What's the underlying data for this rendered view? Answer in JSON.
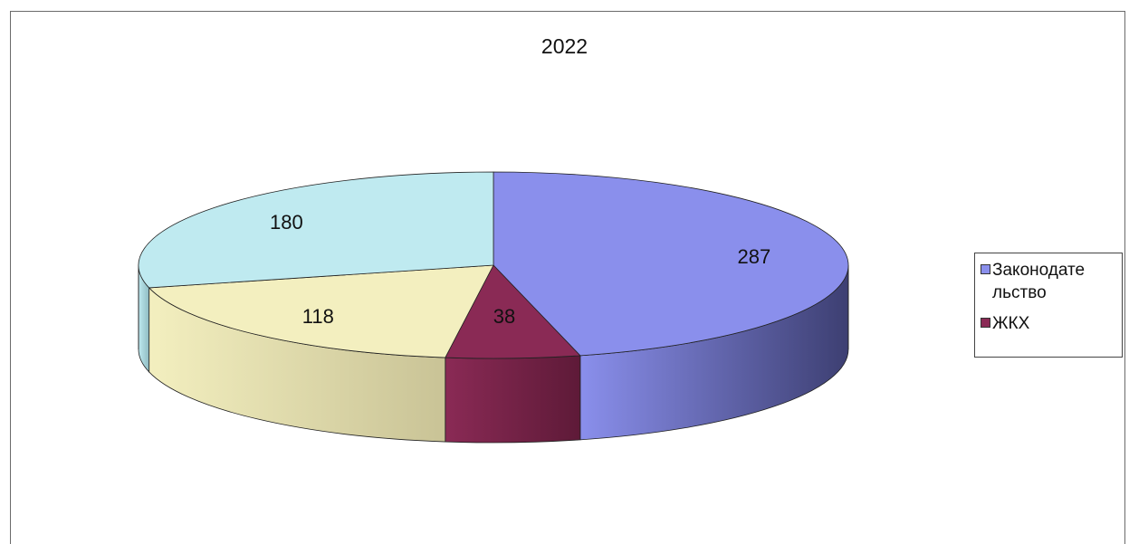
{
  "chart_data": {
    "type": "pie",
    "title": "2022",
    "slices": [
      {
        "label": "",
        "value": 287,
        "color": "#8a8fec",
        "side_color": "#3d3f72"
      },
      {
        "label": "",
        "value": 38,
        "color": "#8a2a55",
        "side_color": "#5e1a38"
      },
      {
        "label": "",
        "value": 118,
        "color": "#f3efbf",
        "side_color": "#c9c396"
      },
      {
        "label": "",
        "value": 180,
        "color": "#bfeaf0",
        "side_color": "#8fbcc2"
      }
    ],
    "legend": {
      "position": "right",
      "entries": [
        {
          "label": "Законодательство",
          "color": "#8a8fec",
          "line1": "Законодате",
          "line2": "льство"
        },
        {
          "label": "ЖКХ",
          "color": "#8a2a55",
          "line1": "ЖКХ",
          "line2": ""
        }
      ]
    },
    "style": "3d-pie"
  }
}
